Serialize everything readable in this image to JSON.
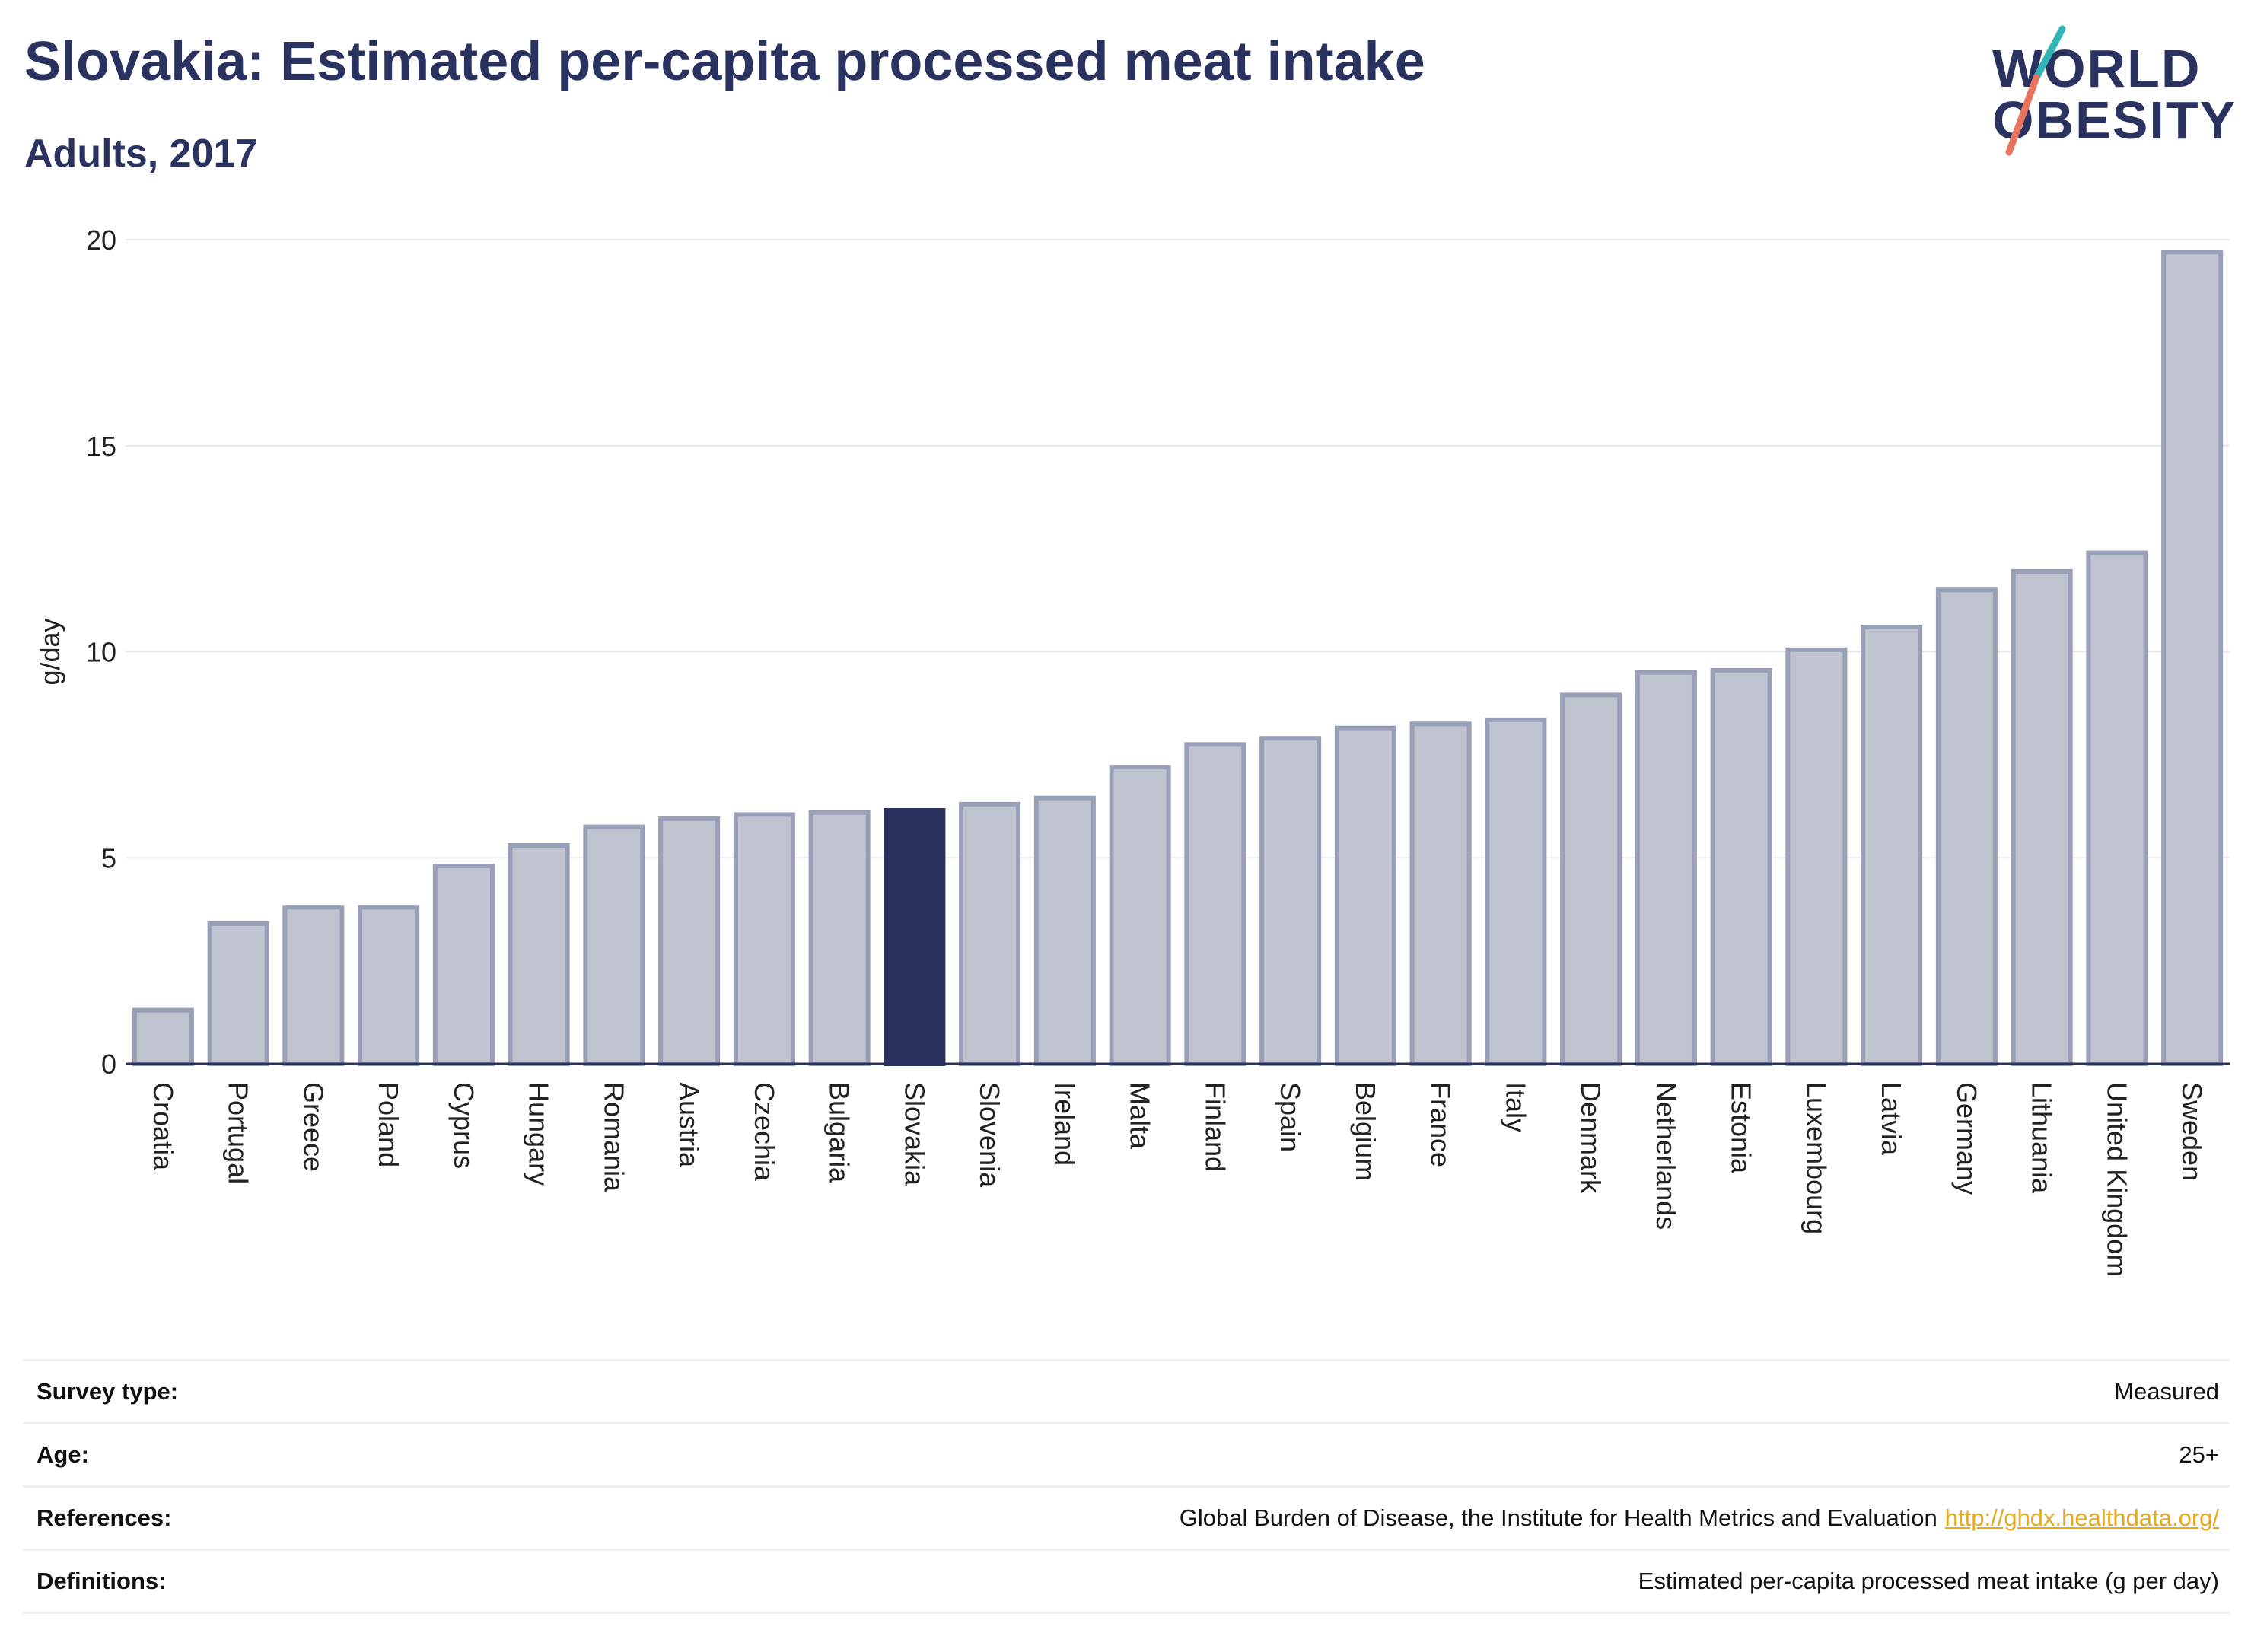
{
  "title": "Slovakia: Estimated per-capita processed meat intake",
  "subtitle": "Adults, 2017",
  "logo": {
    "line1": "WORLD",
    "line2": "OBESITY",
    "accent_colors": [
      "#2fb5b8",
      "#e8735f"
    ]
  },
  "chart_data": {
    "type": "bar",
    "ylabel": "g/day",
    "xlabel": "",
    "ylim": [
      0,
      20
    ],
    "yticks": [
      0,
      5,
      10,
      15,
      20
    ],
    "grid": true,
    "highlight": "Slovakia",
    "colors": {
      "bar": "#bfc2cf",
      "bar_edge": "#9a9fb8",
      "highlight": "#2a3360"
    },
    "categories": [
      "Croatia",
      "Portugal",
      "Greece",
      "Poland",
      "Cyprus",
      "Hungary",
      "Romania",
      "Austria",
      "Czechia",
      "Bulgaria",
      "Slovakia",
      "Slovenia",
      "Ireland",
      "Malta",
      "Finland",
      "Spain",
      "Belgium",
      "France",
      "Italy",
      "Denmark",
      "Netherlands",
      "Estonia",
      "Luxembourg",
      "Latvia",
      "Germany",
      "Lithuania",
      "United Kingdom",
      "Sweden"
    ],
    "values": [
      1.3,
      3.4,
      3.8,
      3.8,
      4.8,
      5.3,
      5.75,
      5.95,
      6.05,
      6.1,
      6.15,
      6.3,
      6.45,
      7.2,
      7.75,
      7.9,
      8.15,
      8.25,
      8.35,
      8.95,
      9.5,
      9.55,
      10.05,
      10.6,
      11.5,
      11.95,
      12.4,
      19.7
    ]
  },
  "meta": {
    "survey_type_label": "Survey type:",
    "survey_type_value": "Measured",
    "age_label": "Age:",
    "age_value": "25+",
    "references_label": "References:",
    "references_value": "Global Burden of Disease, the Institute for Health Metrics and Evaluation",
    "references_link": "http://ghdx.healthdata.org/",
    "definitions_label": "Definitions:",
    "definitions_value": "Estimated per-capita processed meat intake (g per day)"
  }
}
